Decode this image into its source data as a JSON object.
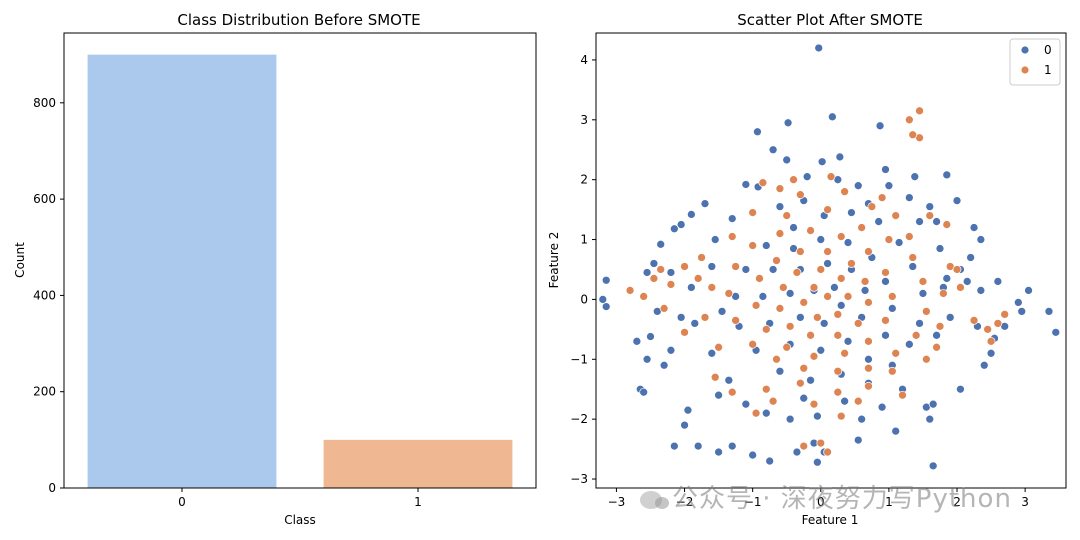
{
  "colors": {
    "bar_class0": "#abc9ed",
    "bar_class1": "#efb792",
    "series0": "#4c72b0",
    "series1": "#dd8452"
  },
  "chart_data": [
    {
      "type": "bar",
      "title": "Class Distribution Before SMOTE",
      "xlabel": "Class",
      "ylabel": "Count",
      "categories": [
        "0",
        "1"
      ],
      "values": [
        900,
        100
      ],
      "ylim": [
        0,
        945
      ],
      "yticks": [
        0,
        200,
        400,
        600,
        800
      ],
      "grid": false
    },
    {
      "type": "scatter",
      "title": "Scatter Plot After SMOTE",
      "xlabel": "Feature 1",
      "ylabel": "Feature 2",
      "xlim": [
        -3.3,
        3.6
      ],
      "ylim": [
        -3.15,
        4.45
      ],
      "xticks": [
        -3,
        -2,
        -1,
        0,
        1,
        2,
        3
      ],
      "yticks": [
        -3,
        -2,
        -1,
        0,
        1,
        2,
        3,
        4
      ],
      "legend": {
        "position": "top-right",
        "entries": [
          "0",
          "1"
        ]
      },
      "grid": false,
      "series": [
        {
          "name": "0",
          "points": [
            [
              -0.03,
              4.2
            ],
            [
              0.17,
              3.05
            ],
            [
              -0.93,
              2.8
            ],
            [
              -0.48,
              2.95
            ],
            [
              0.87,
              2.9
            ],
            [
              -0.7,
              2.5
            ],
            [
              -0.5,
              2.33
            ],
            [
              0.02,
              2.3
            ],
            [
              0.28,
              2.38
            ],
            [
              0.95,
              2.17
            ],
            [
              -1.1,
              1.92
            ],
            [
              -0.92,
              1.88
            ],
            [
              0.55,
              1.9
            ],
            [
              1.38,
              2.05
            ],
            [
              1.85,
              2.08
            ],
            [
              2.0,
              1.65
            ],
            [
              2.25,
              1.2
            ],
            [
              2.35,
              1.0
            ],
            [
              -1.9,
              1.42
            ],
            [
              -2.05,
              1.25
            ],
            [
              -2.15,
              1.18
            ],
            [
              -2.35,
              0.92
            ],
            [
              -2.45,
              0.6
            ],
            [
              -2.55,
              0.45
            ],
            [
              -3.15,
              0.32
            ],
            [
              -3.2,
              0.0
            ],
            [
              -3.15,
              -0.12
            ],
            [
              -2.7,
              -0.7
            ],
            [
              -2.5,
              -0.62
            ],
            [
              -2.3,
              -1.1
            ],
            [
              -2.55,
              -1.0
            ],
            [
              -2.65,
              -1.5
            ],
            [
              -2.6,
              -1.55
            ],
            [
              -2.2,
              -0.85
            ],
            [
              -1.95,
              -1.85
            ],
            [
              -2.0,
              -2.1
            ],
            [
              -2.15,
              -2.45
            ],
            [
              -1.8,
              -2.45
            ],
            [
              -1.5,
              -2.55
            ],
            [
              -1.3,
              -2.45
            ],
            [
              -1.0,
              -2.6
            ],
            [
              -0.75,
              -2.7
            ],
            [
              -0.35,
              -2.55
            ],
            [
              -0.05,
              -2.72
            ],
            [
              0.05,
              -2.55
            ],
            [
              -0.1,
              -2.4
            ],
            [
              0.55,
              -2.35
            ],
            [
              1.1,
              -2.2
            ],
            [
              1.55,
              -1.8
            ],
            [
              1.6,
              -2.0
            ],
            [
              1.65,
              -1.75
            ],
            [
              1.65,
              -2.78
            ],
            [
              2.05,
              -1.5
            ],
            [
              2.4,
              -1.1
            ],
            [
              2.5,
              -0.9
            ],
            [
              2.7,
              -0.45
            ],
            [
              2.95,
              -0.2
            ],
            [
              3.05,
              0.15
            ],
            [
              3.35,
              -0.2
            ],
            [
              3.45,
              -0.55
            ],
            [
              2.9,
              -0.05
            ],
            [
              2.35,
              0.15
            ],
            [
              2.15,
              0.3
            ],
            [
              2.2,
              0.7
            ],
            [
              2.05,
              0.5
            ],
            [
              1.85,
              0.35
            ],
            [
              1.9,
              -0.3
            ],
            [
              1.75,
              0.85
            ],
            [
              1.6,
              1.55
            ],
            [
              1.45,
              1.3
            ],
            [
              1.3,
              1.7
            ],
            [
              0.7,
              1.6
            ],
            [
              -0.25,
              1.65
            ],
            [
              -0.6,
              1.55
            ],
            [
              -1.3,
              1.35
            ],
            [
              -1.55,
              1.0
            ],
            [
              -1.75,
              0.7
            ],
            [
              -1.9,
              0.2
            ],
            [
              -1.85,
              -0.4
            ],
            [
              -1.6,
              -0.9
            ],
            [
              -1.35,
              -1.35
            ],
            [
              -1.1,
              -1.75
            ],
            [
              -0.8,
              -1.9
            ],
            [
              -0.45,
              -2.0
            ],
            [
              -0.05,
              -1.95
            ],
            [
              0.35,
              -1.7
            ],
            [
              0.7,
              -1.4
            ],
            [
              1.05,
              -1.1
            ],
            [
              1.3,
              -0.75
            ],
            [
              1.45,
              -0.4
            ],
            [
              1.5,
              0.1
            ],
            [
              1.35,
              0.55
            ],
            [
              1.15,
              0.95
            ],
            [
              0.85,
              1.3
            ],
            [
              0.45,
              1.45
            ],
            [
              0.05,
              1.4
            ],
            [
              -0.4,
              1.2
            ],
            [
              -0.8,
              0.9
            ],
            [
              -1.1,
              0.5
            ],
            [
              -1.25,
              0.05
            ],
            [
              -1.2,
              -0.45
            ],
            [
              -0.95,
              -0.85
            ],
            [
              -0.6,
              -1.2
            ],
            [
              -0.15,
              -1.35
            ],
            [
              0.3,
              -1.25
            ],
            [
              0.7,
              -1.0
            ],
            [
              0.95,
              -0.6
            ],
            [
              1.05,
              -0.15
            ],
            [
              0.95,
              0.3
            ],
            [
              0.75,
              0.7
            ],
            [
              0.4,
              0.95
            ],
            [
              0.0,
              1.0
            ],
            [
              -0.4,
              0.85
            ],
            [
              -0.7,
              0.5
            ],
            [
              -0.85,
              0.05
            ],
            [
              -0.75,
              -0.4
            ],
            [
              -0.45,
              -0.75
            ],
            [
              0.0,
              -0.85
            ],
            [
              0.4,
              -0.7
            ],
            [
              0.6,
              -0.3
            ],
            [
              0.65,
              0.15
            ],
            [
              0.45,
              0.5
            ],
            [
              0.1,
              0.6
            ],
            [
              -0.3,
              0.5
            ],
            [
              -0.45,
              0.1
            ],
            [
              -0.3,
              -0.3
            ],
            [
              0.05,
              -0.4
            ],
            [
              0.3,
              -0.1
            ],
            [
              0.2,
              0.2
            ],
            [
              -0.1,
              0.15
            ],
            [
              -1.6,
              0.55
            ],
            [
              -1.45,
              -0.2
            ],
            [
              1.7,
              -0.6
            ],
            [
              1.8,
              0.2
            ],
            [
              1.2,
              -1.5
            ],
            [
              0.9,
              -1.8
            ],
            [
              -0.25,
              -1.65
            ],
            [
              -1.5,
              -1.6
            ],
            [
              2.6,
              0.3
            ],
            [
              2.3,
              -0.45
            ],
            [
              -2.2,
              0.45
            ],
            [
              -2.05,
              -0.3
            ],
            [
              0.25,
              2.0
            ],
            [
              -0.2,
              2.05
            ],
            [
              1.0,
              1.9
            ],
            [
              1.7,
              1.3
            ],
            [
              -1.7,
              1.6
            ],
            [
              -2.4,
              -0.2
            ],
            [
              2.55,
              -0.65
            ],
            [
              0.6,
              -2.0
            ]
          ]
        },
        {
          "name": "1",
          "points": [
            [
              1.45,
              3.15
            ],
            [
              1.3,
              3.0
            ],
            [
              1.45,
              2.7
            ],
            [
              1.35,
              2.75
            ],
            [
              -0.85,
              1.95
            ],
            [
              -0.6,
              1.85
            ],
            [
              -0.3,
              1.75
            ],
            [
              0.35,
              1.8
            ],
            [
              0.75,
              1.55
            ],
            [
              1.1,
              1.4
            ],
            [
              1.6,
              1.4
            ],
            [
              1.85,
              1.25
            ],
            [
              1.9,
              0.55
            ],
            [
              2.0,
              0.5
            ],
            [
              2.25,
              -0.35
            ],
            [
              2.45,
              -0.5
            ],
            [
              2.6,
              -0.4
            ],
            [
              2.7,
              -0.25
            ],
            [
              2.5,
              -0.7
            ],
            [
              -2.0,
              0.55
            ],
            [
              -2.35,
              0.5
            ],
            [
              -2.45,
              0.35
            ],
            [
              -2.6,
              0.05
            ],
            [
              -2.8,
              0.15
            ],
            [
              -1.75,
              0.7
            ],
            [
              -2.0,
              -0.55
            ],
            [
              -1.55,
              -1.3
            ],
            [
              -1.3,
              -1.55
            ],
            [
              -0.8,
              -1.5
            ],
            [
              -0.3,
              -1.4
            ],
            [
              0.25,
              -1.55
            ],
            [
              0.7,
              -1.45
            ],
            [
              1.05,
              -1.2
            ],
            [
              1.55,
              -1.0
            ],
            [
              1.7,
              -0.8
            ],
            [
              0.3,
              -1.95
            ],
            [
              0.0,
              -2.4
            ],
            [
              -0.25,
              -2.45
            ],
            [
              0.1,
              -2.55
            ],
            [
              -1.0,
              1.45
            ],
            [
              -0.5,
              1.4
            ],
            [
              0.1,
              1.5
            ],
            [
              0.6,
              1.2
            ],
            [
              1.0,
              1.0
            ],
            [
              1.35,
              0.7
            ],
            [
              1.5,
              0.3
            ],
            [
              1.55,
              -0.2
            ],
            [
              1.4,
              -0.6
            ],
            [
              1.1,
              -0.9
            ],
            [
              0.7,
              -1.15
            ],
            [
              0.25,
              -1.2
            ],
            [
              -0.25,
              -1.15
            ],
            [
              -0.65,
              -1.0
            ],
            [
              -1.0,
              -0.75
            ],
            [
              -1.25,
              -0.35
            ],
            [
              -1.35,
              0.1
            ],
            [
              -1.25,
              0.55
            ],
            [
              -1.0,
              0.9
            ],
            [
              -0.6,
              1.1
            ],
            [
              -0.15,
              1.15
            ],
            [
              0.3,
              1.05
            ],
            [
              0.7,
              0.8
            ],
            [
              0.95,
              0.45
            ],
            [
              1.05,
              0.05
            ],
            [
              0.95,
              -0.35
            ],
            [
              0.7,
              -0.7
            ],
            [
              0.35,
              -0.9
            ],
            [
              -0.1,
              -0.95
            ],
            [
              -0.5,
              -0.8
            ],
            [
              -0.8,
              -0.5
            ],
            [
              -0.95,
              -0.1
            ],
            [
              -0.9,
              0.35
            ],
            [
              -0.65,
              0.65
            ],
            [
              -0.3,
              0.8
            ],
            [
              0.1,
              0.8
            ],
            [
              0.45,
              0.6
            ],
            [
              0.65,
              0.3
            ],
            [
              0.7,
              -0.05
            ],
            [
              0.55,
              -0.4
            ],
            [
              0.25,
              -0.6
            ],
            [
              -0.15,
              -0.6
            ],
            [
              -0.45,
              -0.45
            ],
            [
              -0.6,
              -0.15
            ],
            [
              -0.55,
              0.2
            ],
            [
              -0.35,
              0.45
            ],
            [
              0.0,
              0.5
            ],
            [
              0.3,
              0.35
            ],
            [
              0.4,
              0.05
            ],
            [
              0.25,
              -0.25
            ],
            [
              -0.05,
              -0.3
            ],
            [
              -0.25,
              -0.05
            ],
            [
              -0.1,
              0.2
            ],
            [
              0.1,
              0.05
            ],
            [
              -1.6,
              0.2
            ],
            [
              -1.7,
              -0.3
            ],
            [
              -1.5,
              -0.8
            ],
            [
              -1.8,
              0.35
            ],
            [
              1.8,
              0.1
            ],
            [
              1.75,
              -0.45
            ],
            [
              2.05,
              0.2
            ],
            [
              -2.2,
              0.25
            ],
            [
              -2.3,
              -0.15
            ],
            [
              -0.95,
              -1.9
            ],
            [
              -0.7,
              -1.7
            ],
            [
              1.2,
              -1.6
            ],
            [
              0.9,
              1.7
            ],
            [
              -0.4,
              2.0
            ],
            [
              0.15,
              2.05
            ],
            [
              -1.3,
              1.05
            ],
            [
              1.3,
              1.05
            ],
            [
              0.55,
              -1.7
            ],
            [
              -0.1,
              -1.75
            ]
          ]
        }
      ]
    }
  ]
}
